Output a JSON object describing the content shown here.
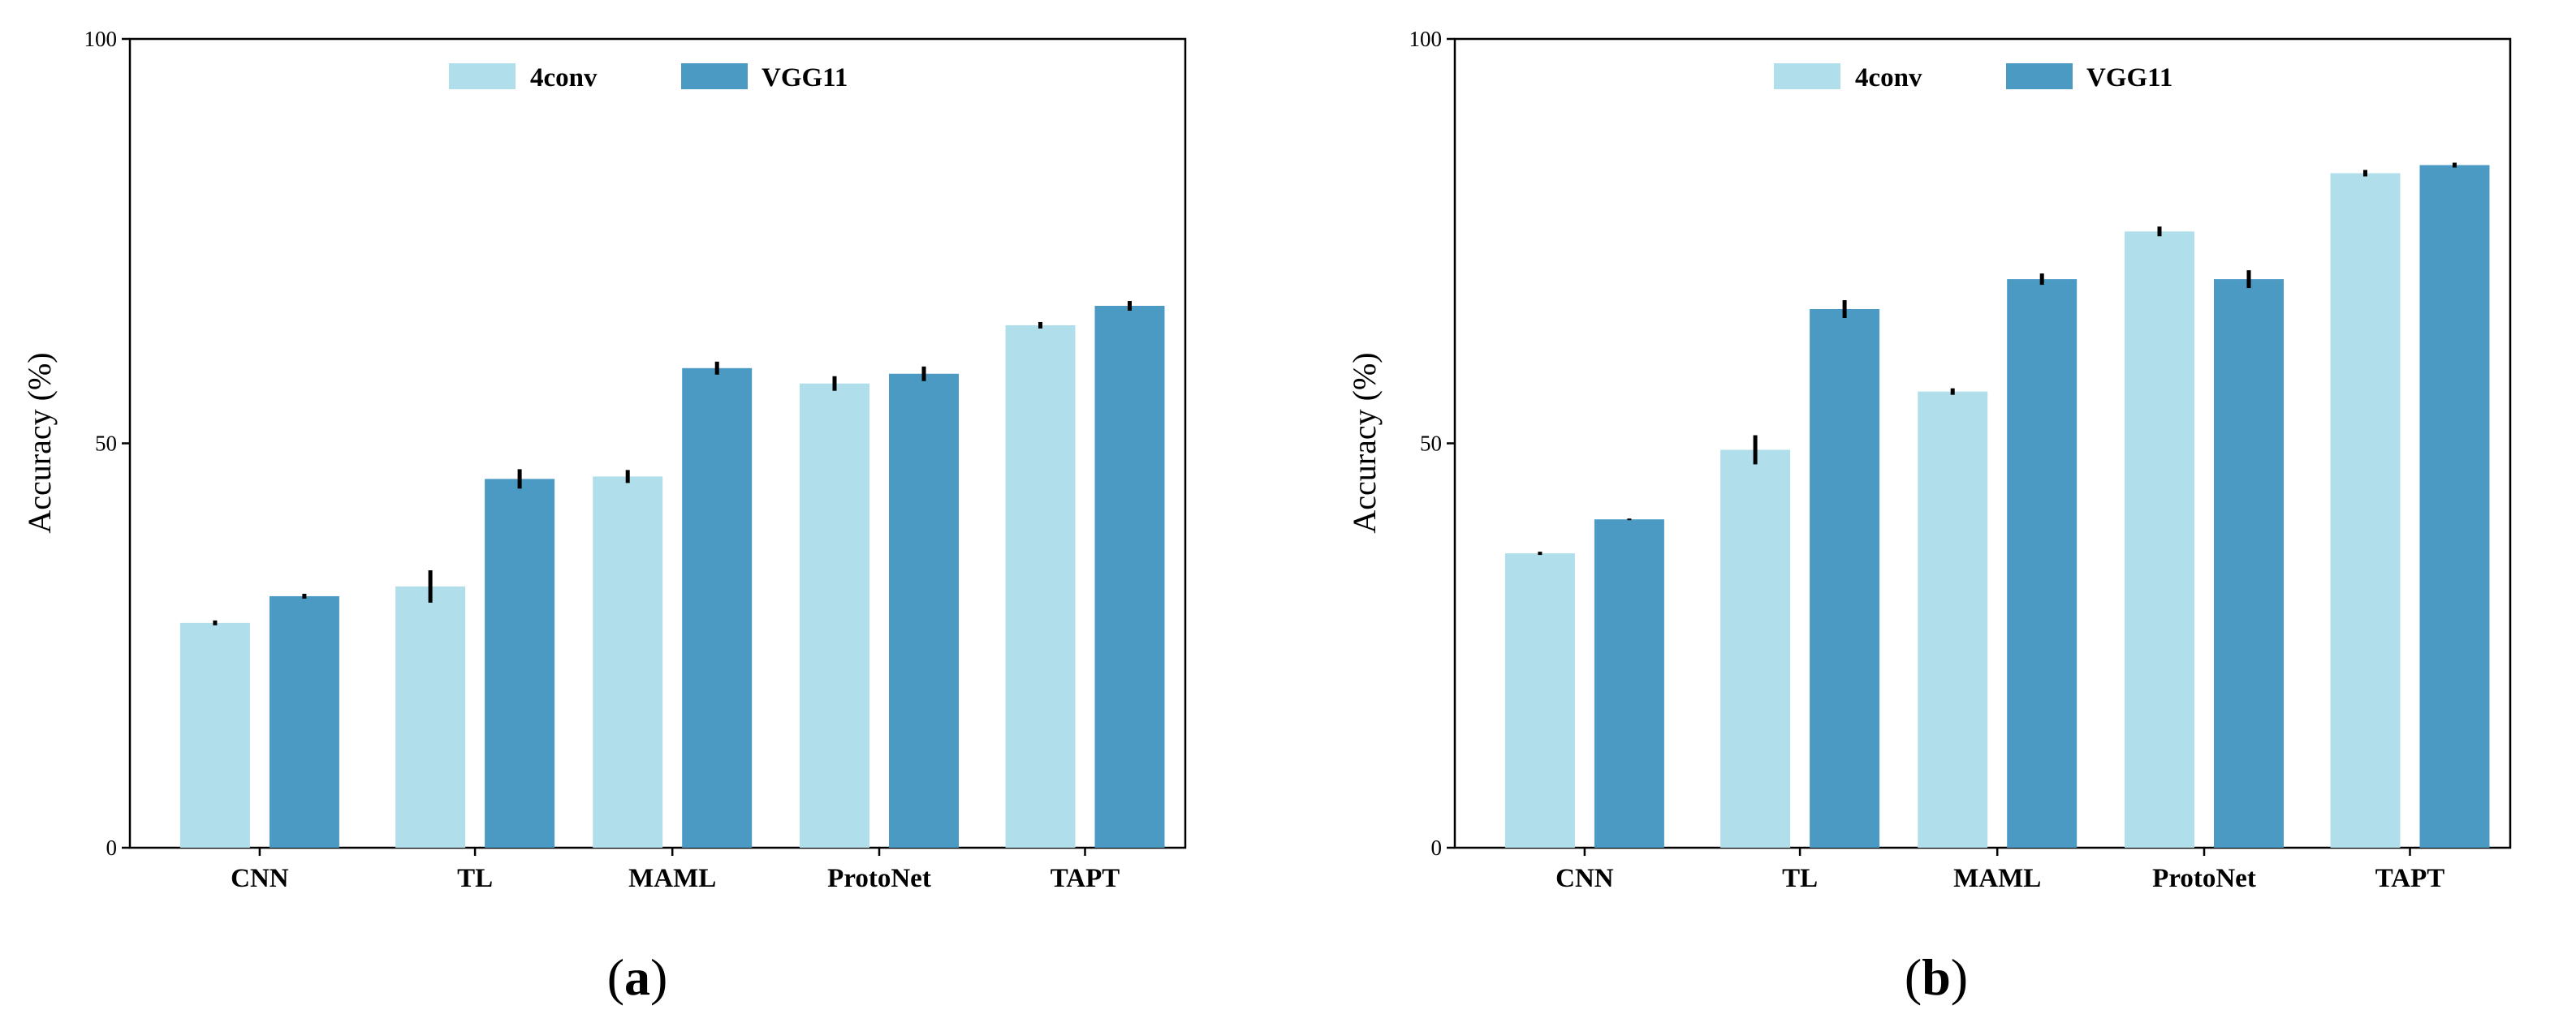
{
  "colors": {
    "4conv": "#b0dfeb",
    "VGG11": "#4b9ac4",
    "error": "#000000"
  },
  "chart_data": [
    {
      "type": "bar",
      "panel_label": "a",
      "ylabel": "Accuracy (%)",
      "ylim": [
        0,
        100
      ],
      "yticks": [
        "0",
        "50",
        "100"
      ],
      "categories": [
        "CNN",
        "TL",
        "MAML",
        "ProtoNet",
        "TAPT"
      ],
      "legend": {
        "placement": "top-center",
        "entries": [
          "4conv",
          "VGG11"
        ]
      },
      "series": [
        {
          "name": "4conv",
          "values": [
            27.8,
            32.3,
            45.9,
            57.4,
            64.6
          ],
          "errors": [
            0.3,
            2.0,
            0.8,
            0.9,
            0.4
          ]
        },
        {
          "name": "VGG11",
          "values": [
            31.1,
            45.6,
            59.3,
            58.6,
            67.0
          ],
          "errors": [
            0.3,
            1.2,
            0.8,
            0.9,
            0.6
          ]
        }
      ]
    },
    {
      "type": "bar",
      "panel_label": "b",
      "ylabel": "Accuracy (%)",
      "ylim": [
        0,
        100
      ],
      "yticks": [
        "0",
        "50",
        "100"
      ],
      "categories": [
        "CNN",
        "TL",
        "MAML",
        "ProtoNet",
        "TAPT"
      ],
      "legend": {
        "placement": "top-center",
        "entries": [
          "4conv",
          "VGG11"
        ]
      },
      "series": [
        {
          "name": "4conv",
          "values": [
            36.4,
            49.2,
            56.4,
            76.2,
            83.4
          ],
          "errors": [
            0.2,
            1.8,
            0.4,
            0.6,
            0.4
          ]
        },
        {
          "name": "VGG11",
          "values": [
            40.6,
            66.6,
            70.3,
            70.3,
            84.4
          ],
          "errors": [
            0.1,
            1.1,
            0.7,
            1.1,
            0.3
          ]
        }
      ]
    }
  ]
}
